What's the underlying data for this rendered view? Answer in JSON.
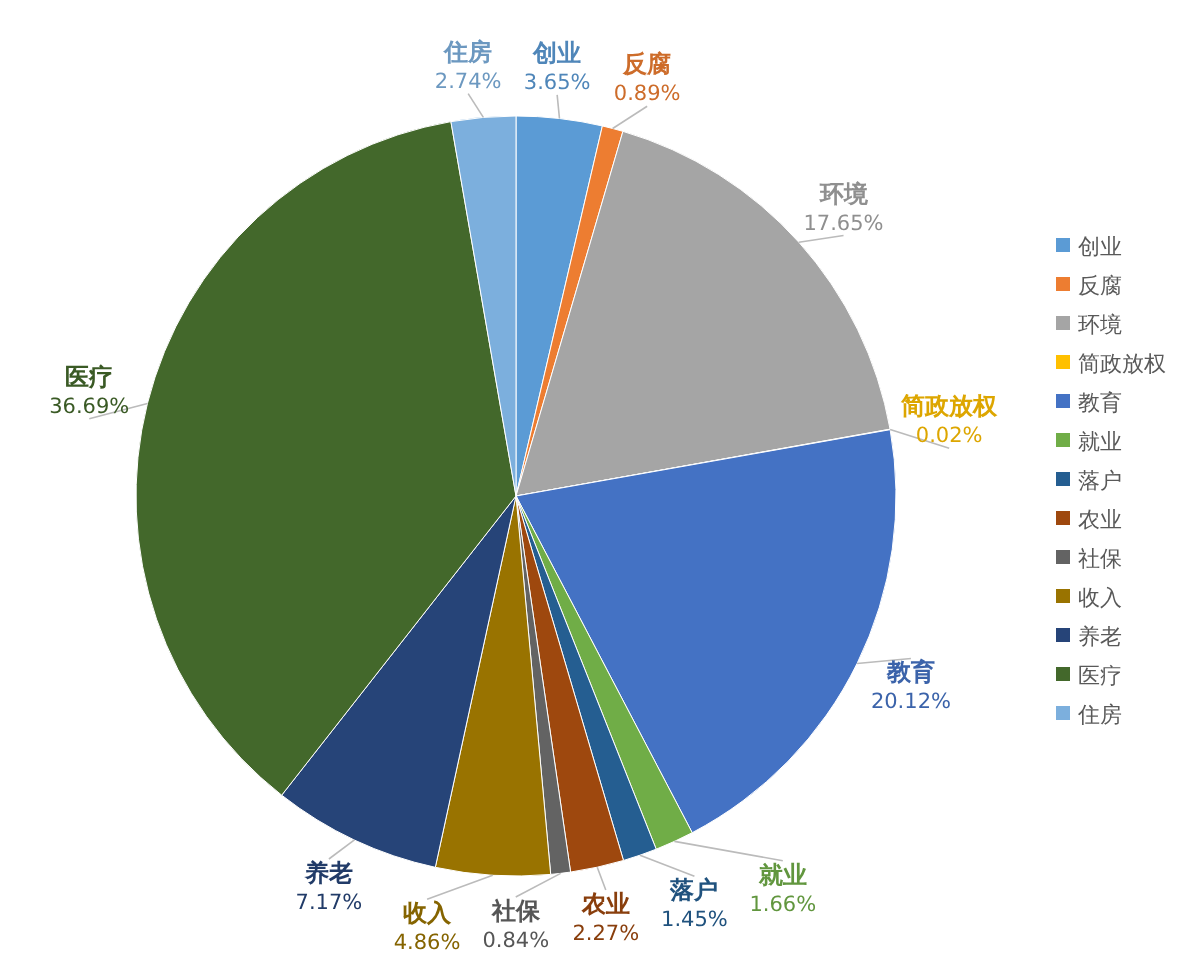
{
  "chart_data": {
    "type": "pie",
    "categories": [
      "创业",
      "反腐",
      "环境",
      "简政放权",
      "教育",
      "就业",
      "落户",
      "农业",
      "社保",
      "收入",
      "养老",
      "医疗",
      "住房"
    ],
    "values": [
      3.65,
      0.89,
      17.65,
      0.02,
      20.12,
      1.66,
      1.45,
      2.27,
      0.84,
      4.86,
      7.17,
      36.69,
      2.74
    ],
    "value_labels": [
      "3.65%",
      "0.89%",
      "17.65%",
      "0.02%",
      "20.12%",
      "1.66%",
      "1.45%",
      "2.27%",
      "0.84%",
      "4.86%",
      "7.17%",
      "36.69%",
      "2.74%"
    ],
    "colors": [
      "#5b9bd5",
      "#ed7d31",
      "#a5a5a5",
      "#ffc000",
      "#4472c4",
      "#70ad47",
      "#255e91",
      "#9e480e",
      "#636363",
      "#997300",
      "#264478",
      "#43682b",
      "#7cafdd"
    ],
    "legend": "right"
  }
}
